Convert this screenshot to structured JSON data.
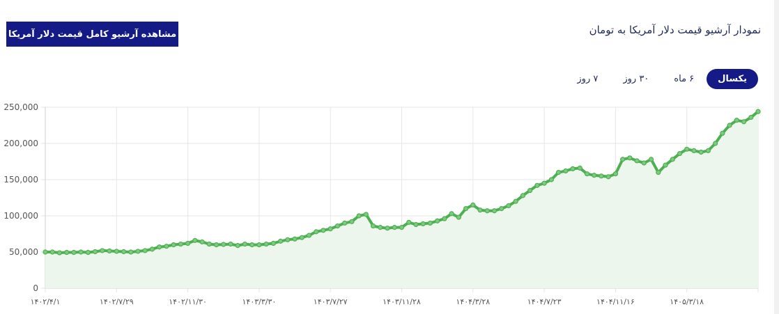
{
  "header": {
    "title": "نمودار آرشیو قیمت دلار آمریکا به تومان",
    "archive_button": "مشاهده آرشیو کامل قیمت دلار آمریکا"
  },
  "tabs": [
    {
      "label": "۷ روز",
      "active": false
    },
    {
      "label": "۳۰ روز",
      "active": false
    },
    {
      "label": "۶ ماه",
      "active": false
    },
    {
      "label": "یکسال",
      "active": true
    }
  ],
  "colors": {
    "accent": "#141b86",
    "line": "#4caf50",
    "fill": "#edf6ec",
    "grid": "#e6e6e6"
  },
  "chart_data": {
    "type": "area",
    "ylim": [
      0,
      250000
    ],
    "yticks": [
      "0",
      "50,000",
      "100,000",
      "150,000",
      "200,000",
      "250,000"
    ],
    "ytick_values": [
      0,
      50000,
      100000,
      150000,
      200000,
      250000
    ],
    "xtick_labels": [
      "۱۴۰۲/۴/۱",
      "۱۴۰۲/۷/۲۹",
      "۱۴۰۲/۱۱/۳۰",
      "۱۴۰۳/۳/۳۰",
      "۱۴۰۳/۷/۲۷",
      "۱۴۰۳/۱۱/۲۸",
      "۱۴۰۴/۳/۲۸",
      "۱۴۰۴/۷/۲۳",
      "۱۴۰۴/۱۱/۱۶",
      "۱۴۰۵/۳/۱۸"
    ],
    "x_index_range": [
      0,
      100
    ],
    "xtick_index": [
      0,
      10,
      20,
      30,
      40,
      50,
      60,
      70,
      80,
      90
    ],
    "series": [
      {
        "x": [
          0,
          1,
          2,
          3,
          4,
          5,
          6,
          7,
          8,
          9,
          10,
          11,
          12,
          13,
          14,
          15,
          16,
          17,
          18,
          19,
          20,
          21,
          22,
          23,
          24,
          25,
          26,
          27,
          28,
          29,
          30,
          31,
          32,
          33,
          34,
          35,
          36,
          37,
          38,
          39,
          40,
          41,
          42,
          43,
          44,
          45,
          46,
          47,
          48,
          49,
          50,
          51,
          52,
          53,
          54,
          55,
          56,
          57,
          58,
          59,
          60,
          61,
          62,
          63,
          64,
          65,
          66,
          67,
          68,
          69,
          70,
          71,
          72,
          73,
          74,
          75,
          76,
          77,
          78,
          79,
          80,
          81,
          82,
          83,
          84,
          85,
          86,
          87,
          88,
          89,
          90,
          91,
          92,
          93,
          94,
          95,
          96,
          97,
          98,
          99,
          100
        ],
        "y": [
          50000,
          50000,
          49000,
          49500,
          49500,
          50000,
          49500,
          50500,
          52000,
          51500,
          51000,
          50500,
          50000,
          51000,
          52000,
          54000,
          57000,
          58000,
          60000,
          61000,
          62000,
          66000,
          64000,
          61000,
          60000,
          60500,
          61000,
          59000,
          61000,
          60000,
          60000,
          61000,
          62000,
          65000,
          67000,
          68000,
          70000,
          73000,
          78000,
          80000,
          82000,
          86000,
          90000,
          92000,
          100000,
          102000,
          86000,
          84000,
          83000,
          84000,
          84000,
          91000,
          88000,
          89000,
          90000,
          93000,
          96000,
          103000,
          98000,
          110000,
          115000,
          108000,
          107000,
          107000,
          110000,
          114000,
          120000,
          128000,
          135000,
          142000,
          145000,
          150000,
          160000,
          162000,
          165000,
          166000,
          158000,
          156000,
          155000,
          154000,
          158000,
          178000,
          180000,
          176000,
          173000,
          178000,
          160000,
          170000,
          178000,
          186000,
          192000,
          190000,
          188000,
          190000,
          200000,
          214000,
          225000,
          232000,
          230000,
          236000,
          244000
        ]
      }
    ]
  }
}
